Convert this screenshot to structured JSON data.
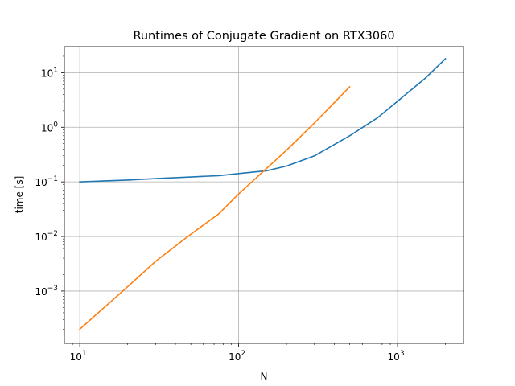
{
  "chart_data": {
    "type": "line",
    "title": "Runtimes of Conjugate Gradient on RTX3060",
    "xlabel": "N",
    "ylabel": "time [s]",
    "xscale": "log",
    "yscale": "log",
    "xlim": [
      8,
      2600
    ],
    "ylim": [
      0.00011,
      30
    ],
    "grid": true,
    "x_ticks": [
      {
        "base": "10",
        "exp": "1",
        "value": 10
      },
      {
        "base": "10",
        "exp": "2",
        "value": 100
      },
      {
        "base": "10",
        "exp": "3",
        "value": 1000
      }
    ],
    "y_ticks": [
      {
        "base": "10",
        "exp": "−3",
        "value": 0.001
      },
      {
        "base": "10",
        "exp": "−2",
        "value": 0.01
      },
      {
        "base": "10",
        "exp": "−1",
        "value": 0.1
      },
      {
        "base": "10",
        "exp": "0",
        "value": 1
      },
      {
        "base": "10",
        "exp": "1",
        "value": 10
      }
    ],
    "series": [
      {
        "color": "#1f77b4",
        "x": [
          10,
          20,
          30,
          50,
          75,
          100,
          150,
          200,
          300,
          500,
          750,
          1000,
          1500,
          2000
        ],
        "y": [
          0.1,
          0.108,
          0.115,
          0.123,
          0.13,
          0.142,
          0.16,
          0.195,
          0.3,
          0.7,
          1.5,
          3.0,
          8.0,
          18.0
        ]
      },
      {
        "color": "#ff7f0e",
        "x": [
          10,
          20,
          30,
          50,
          75,
          100,
          200,
          300,
          500
        ],
        "y": [
          0.0002,
          0.0012,
          0.0035,
          0.011,
          0.026,
          0.06,
          0.38,
          1.2,
          5.5
        ]
      }
    ]
  }
}
